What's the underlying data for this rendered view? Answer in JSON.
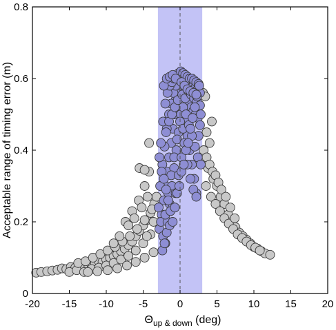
{
  "chart_data": {
    "type": "scatter",
    "xlabel_main": "Θ",
    "xlabel_sub": "up & down",
    "xlabel_unit": " (deg)",
    "ylabel": "Acceptable range of timing error (m)",
    "xlim": [
      -20,
      20
    ],
    "ylim": [
      0,
      0.8
    ],
    "xticks": [
      -20,
      -15,
      -10,
      -5,
      0,
      5,
      10,
      15,
      20
    ],
    "yticks": [
      0,
      0.2,
      0.4,
      0.6,
      0.8
    ],
    "xtick_labels": [
      "-20",
      "-15",
      "-10",
      "-5",
      "0",
      "5",
      "10",
      "15",
      "20"
    ],
    "ytick_labels": [
      "0",
      "0.2",
      "0.4",
      "0.6",
      "0.8"
    ],
    "band": {
      "x_range": [
        -3,
        3
      ],
      "color": "#b8b8f5"
    },
    "reference_line": {
      "x": 0,
      "style": "dashed"
    },
    "grid": false,
    "colors": {
      "outside_band": "#c8c8c8",
      "inside_band": "#8e8ed4",
      "edge": "#3a3a3a"
    },
    "series": [
      {
        "values": [
          [
            -19.5,
            0.058
          ],
          [
            -18.8,
            0.06
          ],
          [
            -18.0,
            0.062
          ],
          [
            -17.3,
            0.064
          ],
          [
            -16.6,
            0.066
          ],
          [
            -16.0,
            0.07
          ],
          [
            -15.4,
            0.068
          ],
          [
            -14.8,
            0.074
          ],
          [
            -14.2,
            0.072
          ],
          [
            -13.6,
            0.078
          ],
          [
            -13.0,
            0.076
          ],
          [
            -12.5,
            0.082
          ],
          [
            -12.0,
            0.08
          ],
          [
            -11.5,
            0.085
          ],
          [
            -11.0,
            0.09
          ],
          [
            -10.5,
            0.088
          ],
          [
            -10.0,
            0.095
          ],
          [
            -9.5,
            0.1
          ],
          [
            -9.0,
            0.105
          ],
          [
            -8.5,
            0.11
          ],
          [
            -8.0,
            0.118
          ],
          [
            -7.5,
            0.125
          ],
          [
            -7.0,
            0.135
          ],
          [
            -6.5,
            0.145
          ],
          [
            -6.0,
            0.16
          ],
          [
            -5.5,
            0.175
          ],
          [
            -5.0,
            0.19
          ],
          [
            -4.5,
            0.205
          ],
          [
            -4.0,
            0.225
          ],
          [
            -3.5,
            0.25
          ],
          [
            -3.2,
            0.27
          ],
          [
            -15.0,
            0.06
          ],
          [
            -14.0,
            0.065
          ],
          [
            -13.0,
            0.06
          ],
          [
            -12.0,
            0.068
          ],
          [
            -11.0,
            0.072
          ],
          [
            -10.0,
            0.078
          ],
          [
            -9.0,
            0.085
          ],
          [
            -8.0,
            0.095
          ],
          [
            -7.0,
            0.105
          ],
          [
            -6.0,
            0.12
          ],
          [
            -5.0,
            0.14
          ],
          [
            -4.0,
            0.165
          ],
          [
            -13.8,
            0.085
          ],
          [
            -12.8,
            0.09
          ],
          [
            -11.8,
            0.1
          ],
          [
            -10.8,
            0.11
          ],
          [
            -9.8,
            0.12
          ],
          [
            -8.8,
            0.13
          ],
          [
            -7.8,
            0.145
          ],
          [
            -6.8,
            0.16
          ],
          [
            -5.8,
            0.18
          ],
          [
            -4.8,
            0.205
          ],
          [
            -3.8,
            0.235
          ],
          [
            -12.5,
            0.06
          ],
          [
            -11.2,
            0.062
          ],
          [
            -9.8,
            0.065
          ],
          [
            -8.5,
            0.07
          ],
          [
            -7.2,
            0.078
          ],
          [
            -6.0,
            0.088
          ],
          [
            -4.8,
            0.1
          ],
          [
            -3.6,
            0.115
          ],
          [
            -7.4,
            0.2
          ],
          [
            -6.5,
            0.23
          ],
          [
            -5.6,
            0.26
          ],
          [
            -4.8,
            0.3
          ],
          [
            -4.2,
            0.34
          ],
          [
            -3.6,
            0.2
          ],
          [
            -4.5,
            0.16
          ],
          [
            -5.5,
            0.35
          ],
          [
            -4.8,
            0.345
          ],
          [
            -4.2,
            0.42
          ],
          [
            -9.0,
            0.14
          ],
          [
            -8.2,
            0.16
          ],
          [
            -7.0,
            0.19
          ],
          [
            -6.2,
            0.21
          ],
          [
            -5.2,
            0.24
          ],
          [
            -4.4,
            0.27
          ],
          [
            3.1,
            0.56
          ],
          [
            3.4,
            0.55
          ],
          [
            3.6,
            0.45
          ],
          [
            4.0,
            0.42
          ],
          [
            4.3,
            0.48
          ],
          [
            3.8,
            0.35
          ],
          [
            4.5,
            0.32
          ],
          [
            5.0,
            0.3
          ],
          [
            5.5,
            0.27
          ],
          [
            6.0,
            0.25
          ],
          [
            6.5,
            0.22
          ],
          [
            7.0,
            0.2
          ],
          [
            7.5,
            0.185
          ],
          [
            8.0,
            0.17
          ],
          [
            8.5,
            0.16
          ],
          [
            9.0,
            0.15
          ],
          [
            9.5,
            0.14
          ],
          [
            10.0,
            0.13
          ],
          [
            10.5,
            0.125
          ],
          [
            11.0,
            0.118
          ],
          [
            11.5,
            0.112
          ],
          [
            12.2,
            0.108
          ],
          [
            3.5,
            0.3
          ],
          [
            4.2,
            0.27
          ],
          [
            4.8,
            0.25
          ],
          [
            5.4,
            0.23
          ],
          [
            6.0,
            0.21
          ],
          [
            6.6,
            0.195
          ],
          [
            7.2,
            0.18
          ],
          [
            7.8,
            0.165
          ],
          [
            8.4,
            0.155
          ],
          [
            9.0,
            0.145
          ],
          [
            9.6,
            0.135
          ],
          [
            10.2,
            0.128
          ],
          [
            10.8,
            0.12
          ],
          [
            3.2,
            0.4
          ],
          [
            3.6,
            0.38
          ],
          [
            4.0,
            0.36
          ],
          [
            4.4,
            0.34
          ],
          [
            4.8,
            0.33
          ],
          [
            5.2,
            0.31
          ],
          [
            5.6,
            0.29
          ],
          [
            6.2,
            0.27
          ],
          [
            6.8,
            0.24
          ],
          [
            7.4,
            0.21
          ]
        ]
      },
      {
        "values": [
          [
            -2.8,
            0.18
          ],
          [
            -2.5,
            0.22
          ],
          [
            -2.2,
            0.26
          ],
          [
            -2.0,
            0.3
          ],
          [
            -1.8,
            0.34
          ],
          [
            -1.5,
            0.38
          ],
          [
            -1.2,
            0.42
          ],
          [
            -1.0,
            0.46
          ],
          [
            -0.8,
            0.5
          ],
          [
            -0.6,
            0.54
          ],
          [
            -0.4,
            0.57
          ],
          [
            -0.2,
            0.59
          ],
          [
            0.0,
            0.6
          ],
          [
            0.2,
            0.59
          ],
          [
            0.4,
            0.575
          ],
          [
            0.6,
            0.56
          ],
          [
            0.8,
            0.55
          ],
          [
            1.0,
            0.54
          ],
          [
            1.2,
            0.53
          ],
          [
            1.5,
            0.52
          ],
          [
            1.8,
            0.51
          ],
          [
            2.1,
            0.5
          ],
          [
            2.4,
            0.49
          ],
          [
            2.7,
            0.47
          ],
          [
            -2.7,
            0.3
          ],
          [
            -2.4,
            0.36
          ],
          [
            -2.1,
            0.41
          ],
          [
            -1.8,
            0.46
          ],
          [
            -1.5,
            0.5
          ],
          [
            -1.2,
            0.53
          ],
          [
            -0.9,
            0.56
          ],
          [
            -0.6,
            0.58
          ],
          [
            -0.3,
            0.6
          ],
          [
            0.3,
            0.605
          ],
          [
            0.6,
            0.6
          ],
          [
            0.9,
            0.595
          ],
          [
            1.2,
            0.59
          ],
          [
            1.5,
            0.585
          ],
          [
            1.8,
            0.58
          ],
          [
            2.1,
            0.575
          ],
          [
            2.4,
            0.57
          ],
          [
            2.7,
            0.56
          ],
          [
            -2.6,
            0.42
          ],
          [
            -2.3,
            0.48
          ],
          [
            -2.0,
            0.53
          ],
          [
            -1.7,
            0.56
          ],
          [
            -1.4,
            0.58
          ],
          [
            -1.1,
            0.59
          ],
          [
            -0.8,
            0.6
          ],
          [
            -0.5,
            0.61
          ],
          [
            -0.2,
            0.615
          ],
          [
            0.1,
            0.62
          ],
          [
            0.4,
            0.615
          ],
          [
            0.7,
            0.61
          ],
          [
            1.0,
            0.605
          ],
          [
            1.3,
            0.6
          ],
          [
            1.6,
            0.6
          ],
          [
            1.9,
            0.595
          ],
          [
            2.2,
            0.59
          ],
          [
            2.5,
            0.585
          ],
          [
            -2.9,
            0.24
          ],
          [
            -2.6,
            0.2
          ],
          [
            -2.3,
            0.16
          ],
          [
            -2.0,
            0.14
          ],
          [
            -1.7,
            0.2
          ],
          [
            -1.4,
            0.25
          ],
          [
            -1.1,
            0.3
          ],
          [
            -0.8,
            0.35
          ],
          [
            -0.5,
            0.4
          ],
          [
            -0.2,
            0.45
          ],
          [
            0.1,
            0.5
          ],
          [
            0.4,
            0.52
          ],
          [
            0.7,
            0.48
          ],
          [
            1.0,
            0.44
          ],
          [
            1.3,
            0.4
          ],
          [
            1.6,
            0.36
          ],
          [
            1.9,
            0.32
          ],
          [
            2.2,
            0.28
          ],
          [
            2.5,
            0.44
          ],
          [
            2.8,
            0.5
          ],
          [
            -2.0,
            0.22
          ],
          [
            -1.6,
            0.28
          ],
          [
            -1.2,
            0.33
          ],
          [
            -0.8,
            0.38
          ],
          [
            -0.4,
            0.43
          ],
          [
            0.0,
            0.48
          ],
          [
            0.4,
            0.46
          ],
          [
            0.8,
            0.5
          ],
          [
            1.2,
            0.47
          ],
          [
            1.6,
            0.44
          ],
          [
            2.0,
            0.41
          ],
          [
            2.4,
            0.38
          ],
          [
            2.8,
            0.36
          ],
          [
            -2.4,
            0.12
          ],
          [
            -2.1,
            0.14
          ],
          [
            -1.8,
            0.17
          ],
          [
            -1.4,
            0.19
          ],
          [
            -1.0,
            0.24
          ],
          [
            -0.6,
            0.28
          ],
          [
            -0.2,
            0.33
          ],
          [
            0.2,
            0.38
          ],
          [
            0.6,
            0.42
          ],
          [
            1.0,
            0.36
          ],
          [
            1.4,
            0.32
          ],
          [
            1.8,
            0.29
          ],
          [
            2.2,
            0.27
          ],
          [
            -1.9,
            0.45
          ],
          [
            -1.5,
            0.48
          ],
          [
            -1.1,
            0.5
          ],
          [
            -0.7,
            0.52
          ],
          [
            -0.3,
            0.54
          ],
          [
            0.3,
            0.555
          ],
          [
            0.7,
            0.545
          ],
          [
            1.1,
            0.565
          ],
          [
            1.5,
            0.555
          ],
          [
            1.9,
            0.545
          ],
          [
            2.3,
            0.535
          ],
          [
            2.7,
            0.525
          ],
          [
            -2.8,
            0.38
          ],
          [
            -2.5,
            0.34
          ],
          [
            -2.2,
            0.32
          ],
          [
            -1.9,
            0.29
          ],
          [
            -1.6,
            0.26
          ],
          [
            -1.3,
            0.23
          ],
          [
            -1.0,
            0.2
          ],
          [
            -0.7,
            0.24
          ],
          [
            -0.4,
            0.28
          ],
          [
            -0.1,
            0.3
          ],
          [
            0.2,
            0.34
          ],
          [
            0.5,
            0.36
          ],
          [
            0.8,
            0.4
          ],
          [
            1.1,
            0.42
          ],
          [
            1.4,
            0.46
          ],
          [
            1.7,
            0.49
          ],
          [
            2.0,
            0.52
          ],
          [
            2.3,
            0.55
          ],
          [
            2.6,
            0.58
          ],
          [
            -2.2,
            0.58
          ],
          [
            -1.8,
            0.6
          ],
          [
            -1.4,
            0.605
          ],
          [
            -1.0,
            0.61
          ],
          [
            -0.6,
            0.6
          ],
          [
            0.2,
            0.59
          ],
          [
            0.6,
            0.58
          ],
          [
            1.0,
            0.57
          ],
          [
            1.4,
            0.565
          ],
          [
            1.8,
            0.56
          ],
          [
            2.2,
            0.555
          ]
        ]
      }
    ]
  }
}
